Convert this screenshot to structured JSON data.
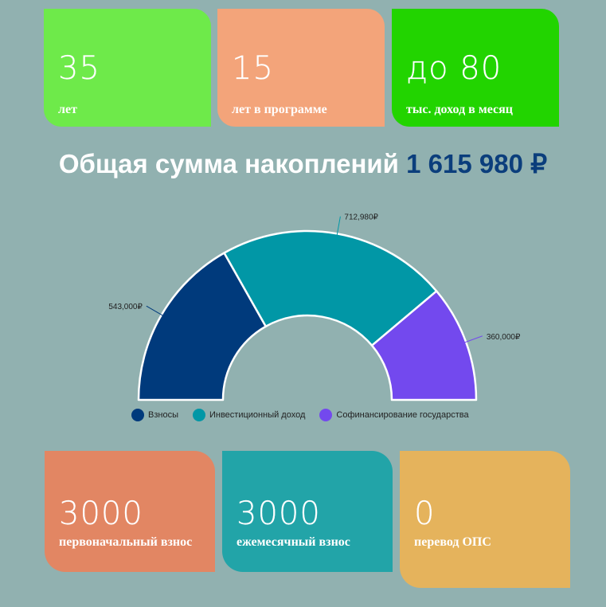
{
  "top_cards": [
    {
      "value": "35",
      "label": "лет",
      "color": "#6eea4a"
    },
    {
      "value": "15",
      "label": "лет в программе",
      "color": "#f3a47a"
    },
    {
      "value": "до 80",
      "label": "тыс. доход в месяц",
      "color": "#22d400"
    }
  ],
  "headline": {
    "text": "Общая сумма накоплений",
    "amount": "1 615 980 ₽"
  },
  "chart_data": {
    "type": "pie",
    "subtype": "semi-donut",
    "categories": [
      "Взносы",
      "Инвестиционный доход",
      "Софинансирование государства"
    ],
    "values": [
      543000,
      712980,
      360000
    ],
    "data_labels": [
      "543,000₽",
      "712,980₽",
      "360,000₽"
    ],
    "colors": [
      "#003a7c",
      "#0197a6",
      "#7349ee"
    ],
    "legend": "bottom"
  },
  "bottom_cards": [
    {
      "value": "3000",
      "label": "первоначальный взнос",
      "color": "#e28663"
    },
    {
      "value": "3000",
      "label": "ежемесячный взнос",
      "color": "#22a4a8"
    },
    {
      "value": "0",
      "label": "перевод ОПС",
      "color": "#e5b35c"
    }
  ]
}
